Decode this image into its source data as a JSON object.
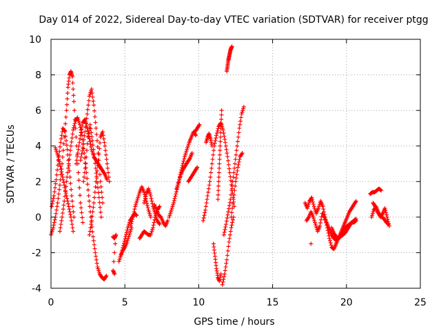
{
  "chart_data": {
    "type": "scatter",
    "title": "Day 014 of 2022, Sidereal Day-to-day VTEC variation (SDTVAR) for receiver ptgg",
    "xlabel": "GPS time / hours",
    "ylabel": "SDTVAR / TECUs",
    "xlim": [
      0,
      25
    ],
    "ylim": [
      -4,
      10
    ],
    "xticks": [
      0,
      5,
      10,
      15,
      20,
      25
    ],
    "yticks": [
      -4,
      -2,
      0,
      2,
      4,
      6,
      8,
      10
    ],
    "grid": true,
    "marker": "+",
    "series": [
      {
        "name": "SDTVAR",
        "color": "#ff0000",
        "tracks": [
          {
            "x": [
              0.0,
              0.15,
              0.3,
              0.45,
              0.6,
              0.75,
              0.9,
              1.05,
              1.15,
              1.25,
              1.35,
              1.45,
              1.55,
              1.7,
              1.85,
              2.0,
              2.15
            ],
            "y": [
              -1.0,
              -0.6,
              0.0,
              0.8,
              1.8,
              3.0,
              4.5,
              6.0,
              7.3,
              8.0,
              8.2,
              7.9,
              6.5,
              4.5,
              2.5,
              0.8,
              -0.3
            ]
          },
          {
            "x": [
              0.05,
              0.2,
              0.35,
              0.5,
              0.65,
              0.8,
              0.95,
              1.1,
              1.25,
              1.4,
              1.55
            ],
            "y": [
              0.6,
              1.2,
              2.1,
              3.2,
              4.2,
              5.0,
              4.8,
              3.8,
              2.6,
              1.2,
              0.0
            ]
          },
          {
            "x": [
              0.3,
              0.45,
              0.6,
              0.75,
              0.9,
              1.05,
              1.2,
              1.35,
              1.5
            ],
            "y": [
              3.9,
              3.5,
              3.0,
              2.4,
              1.8,
              1.2,
              0.6,
              0.0,
              -0.8
            ]
          },
          {
            "x": [
              0.6,
              0.75,
              0.9,
              1.05,
              1.2,
              1.35,
              1.5,
              1.65,
              1.8,
              1.95,
              2.1,
              2.25,
              2.4,
              2.55,
              2.7,
              2.85,
              3.0,
              3.15,
              3.3,
              3.45,
              3.6,
              3.75
            ],
            "y": [
              -0.8,
              0.0,
              0.9,
              2.0,
              3.0,
              4.0,
              4.9,
              5.4,
              5.6,
              5.2,
              4.6,
              3.6,
              2.5,
              1.2,
              0.0,
              -1.1,
              -2.0,
              -2.8,
              -3.2,
              -3.4,
              -3.5,
              -3.3
            ]
          },
          {
            "x": [
              1.7,
              1.85,
              2.0,
              2.15,
              2.3,
              2.45,
              2.6,
              2.75,
              2.9,
              3.05,
              3.2,
              3.35,
              3.5,
              3.65,
              3.8
            ],
            "y": [
              3.0,
              3.8,
              4.6,
              5.3,
              5.5,
              5.0,
              4.4,
              3.8,
              3.4,
              3.2,
              3.0,
              2.8,
              2.6,
              2.4,
              2.1
            ]
          },
          {
            "x": [
              2.0,
              2.15,
              2.3,
              2.45,
              2.6,
              2.75,
              2.9,
              3.05,
              3.2,
              3.35,
              3.5
            ],
            "y": [
              3.2,
              3.9,
              4.8,
              5.8,
              6.8,
              7.2,
              6.3,
              5.0,
              3.6,
              2.0,
              0.8
            ]
          },
          {
            "x": [
              2.2,
              2.35,
              2.5,
              2.65,
              2.8,
              2.95,
              3.1,
              3.25,
              3.4
            ],
            "y": [
              2.0,
              3.0,
              4.5,
              5.2,
              4.3,
              3.3,
              2.2,
              1.1,
              0.0
            ]
          },
          {
            "x": [
              2.6,
              2.75,
              2.9,
              3.05,
              3.2,
              3.35,
              3.5,
              3.65,
              3.8,
              3.95
            ],
            "y": [
              -1.0,
              -0.2,
              0.8,
              2.0,
              3.2,
              4.5,
              4.8,
              4.0,
              3.0,
              2.0
            ]
          },
          {
            "x": [
              4.2,
              4.3,
              4.4,
              4.2,
              4.3
            ],
            "y": [
              -1.1,
              -1.2,
              -1.0,
              -3.0,
              -3.2
            ]
          },
          {
            "x": [
              4.6,
              4.75,
              4.9,
              5.05,
              5.2,
              5.35,
              5.5,
              5.65,
              5.8
            ],
            "y": [
              -2.5,
              -2.1,
              -1.6,
              -1.1,
              -0.6,
              -0.2,
              0.0,
              0.2,
              0.1
            ]
          },
          {
            "x": [
              4.7,
              4.85,
              5.0,
              5.15,
              5.3,
              5.45
            ],
            "y": [
              -2.2,
              -1.9,
              -1.7,
              -1.4,
              -1.0,
              -0.6
            ]
          },
          {
            "x": [
              5.4,
              5.55,
              5.7,
              5.85,
              6.0,
              6.15,
              6.3,
              6.45,
              6.6,
              6.75
            ],
            "y": [
              -0.5,
              0.0,
              0.6,
              1.0,
              1.4,
              1.7,
              1.4,
              0.9,
              0.4,
              0.0
            ]
          },
          {
            "x": [
              6.0,
              6.15,
              6.3,
              6.45,
              6.6,
              6.75,
              6.9,
              7.05,
              7.2,
              7.35
            ],
            "y": [
              -1.2,
              -1.0,
              -0.8,
              -0.9,
              -1.0,
              -1.0,
              -0.6,
              0.0,
              0.4,
              0.6
            ]
          },
          {
            "x": [
              6.3,
              6.45,
              6.6,
              6.75,
              6.9,
              7.05,
              7.2,
              7.35
            ],
            "y": [
              0.8,
              1.3,
              1.6,
              1.2,
              0.6,
              0.2,
              -0.2,
              -0.4
            ]
          },
          {
            "x": [
              7.0,
              7.15,
              7.3,
              7.45,
              7.6,
              7.75,
              7.9
            ],
            "y": [
              0.7,
              0.4,
              0.1,
              0.0,
              -0.3,
              -0.5,
              -0.2
            ]
          },
          {
            "x": [
              8.0,
              8.15,
              8.3,
              8.45,
              8.6,
              8.75,
              8.9,
              9.05,
              9.2,
              9.35,
              9.5,
              9.65,
              9.8
            ],
            "y": [
              0.0,
              0.4,
              0.8,
              1.3,
              1.8,
              2.4,
              2.9,
              3.4,
              3.8,
              4.2,
              4.5,
              4.8,
              4.6
            ]
          },
          {
            "x": [
              8.5,
              8.65,
              8.8,
              8.95,
              9.1,
              9.25,
              9.4,
              9.55
            ],
            "y": [
              1.6,
              2.0,
              2.4,
              2.7,
              2.9,
              3.1,
              3.3,
              3.6
            ]
          },
          {
            "x": [
              9.3,
              9.45,
              9.6,
              9.75,
              9.9
            ],
            "y": [
              2.0,
              2.2,
              2.4,
              2.6,
              2.8
            ]
          },
          {
            "x": [
              9.75,
              9.9,
              10.05
            ],
            "y": [
              4.8,
              5.0,
              5.2
            ]
          },
          {
            "x": [
              10.3,
              10.45,
              10.6,
              10.75,
              10.9,
              11.05,
              11.2,
              11.35,
              11.5,
              11.65,
              11.8,
              11.95,
              12.1,
              12.25,
              12.4
            ],
            "y": [
              -0.2,
              0.4,
              1.2,
              2.0,
              3.0,
              4.0,
              4.6,
              5.1,
              5.3,
              4.9,
              4.2,
              3.4,
              2.5,
              1.6,
              0.6
            ]
          },
          {
            "x": [
              10.5,
              10.6,
              10.7,
              10.8,
              10.9
            ],
            "y": [
              4.2,
              4.5,
              4.7,
              4.4,
              4.0
            ]
          },
          {
            "x": [
              11.0,
              11.1,
              11.2,
              11.3,
              11.4,
              11.5
            ],
            "y": [
              -1.5,
              -2.2,
              -2.9,
              -3.4,
              -3.6,
              -3.2
            ]
          },
          {
            "x": [
              11.3,
              11.35,
              11.4,
              11.45,
              11.5,
              11.55
            ],
            "y": [
              1.0,
              2.0,
              3.0,
              4.0,
              5.0,
              6.0
            ]
          },
          {
            "x": [
              11.7,
              11.85,
              12.0,
              12.15,
              12.3,
              12.45,
              12.6,
              12.75,
              12.9,
              13.05
            ],
            "y": [
              -1.0,
              -0.4,
              0.3,
              1.0,
              2.0,
              3.0,
              4.0,
              5.0,
              5.8,
              6.2
            ]
          },
          {
            "x": [
              11.6,
              11.75,
              11.9,
              12.05,
              12.2,
              12.35
            ],
            "y": [
              -3.8,
              -3.2,
              -2.4,
              -1.4,
              -0.6,
              0.0
            ]
          },
          {
            "x": [
              11.9,
              11.95,
              12.0,
              12.05,
              12.1,
              12.15,
              12.2,
              12.25
            ],
            "y": [
              8.2,
              8.5,
              8.8,
              9.0,
              9.2,
              9.4,
              9.5,
              9.6
            ]
          },
          {
            "x": [
              12.2,
              12.35,
              12.5,
              12.65,
              12.8,
              12.95
            ],
            "y": [
              0.0,
              1.0,
              2.0,
              2.8,
              3.4,
              3.6
            ]
          },
          {
            "x": [
              17.2,
              17.35,
              17.5,
              17.65,
              17.8,
              17.95,
              18.1,
              18.25,
              18.4,
              18.55,
              18.7,
              18.85,
              19.0,
              19.15,
              19.3,
              19.45,
              19.6,
              19.75,
              19.9,
              20.05,
              20.2,
              20.35,
              20.5,
              20.65
            ],
            "y": [
              0.8,
              0.5,
              0.9,
              1.1,
              0.6,
              0.2,
              0.5,
              0.9,
              0.6,
              0.0,
              -0.6,
              -1.2,
              -1.7,
              -1.8,
              -1.5,
              -1.2,
              -0.9,
              -0.6,
              -0.3,
              0.0,
              0.3,
              0.5,
              0.7,
              0.9
            ]
          },
          {
            "x": [
              17.3,
              17.45,
              17.6,
              17.75,
              17.9,
              18.05,
              18.2,
              18.35
            ],
            "y": [
              -0.2,
              0.0,
              0.3,
              0.0,
              -0.4,
              -0.8,
              -0.5,
              0.2
            ]
          },
          {
            "x": [
              18.4,
              18.55,
              18.7,
              18.85,
              19.0,
              19.15,
              19.3,
              19.45,
              19.6,
              19.75,
              19.9,
              20.05,
              20.2,
              20.35,
              20.5,
              20.65
            ],
            "y": [
              0.2,
              -0.1,
              -0.4,
              -0.7,
              -1.0,
              -1.2,
              -1.3,
              -1.2,
              -1.0,
              -0.8,
              -0.6,
              -0.5,
              -0.4,
              -0.3,
              -0.3,
              -0.2
            ]
          },
          {
            "x": [
              19.0,
              19.15,
              19.3,
              19.45,
              19.6,
              19.75,
              19.9,
              20.05,
              20.2,
              20.35,
              20.5,
              20.65
            ],
            "y": [
              -0.6,
              -0.9,
              -1.1,
              -1.2,
              -1.1,
              -1.0,
              -0.9,
              -0.7,
              -0.5,
              -0.3,
              -0.2,
              -0.1
            ]
          },
          {
            "x": [
              17.6
            ],
            "y": [
              -1.5
            ]
          },
          {
            "x": [
              21.6,
              21.75,
              21.9,
              22.05,
              22.2,
              22.35
            ],
            "y": [
              1.3,
              1.4,
              1.4,
              1.5,
              1.6,
              1.5
            ]
          },
          {
            "x": [
              21.7,
              21.85,
              22.0,
              22.15,
              22.3,
              22.45,
              22.6,
              22.75,
              22.9
            ],
            "y": [
              0.0,
              0.4,
              0.6,
              0.3,
              0.0,
              0.2,
              0.5,
              0.0,
              -0.5
            ]
          },
          {
            "x": [
              21.8,
              21.95,
              22.1,
              22.25,
              22.4,
              22.55,
              22.7,
              22.85
            ],
            "y": [
              0.8,
              0.6,
              0.3,
              0.1,
              0.0,
              -0.1,
              -0.3,
              -0.4
            ]
          }
        ]
      }
    ]
  }
}
